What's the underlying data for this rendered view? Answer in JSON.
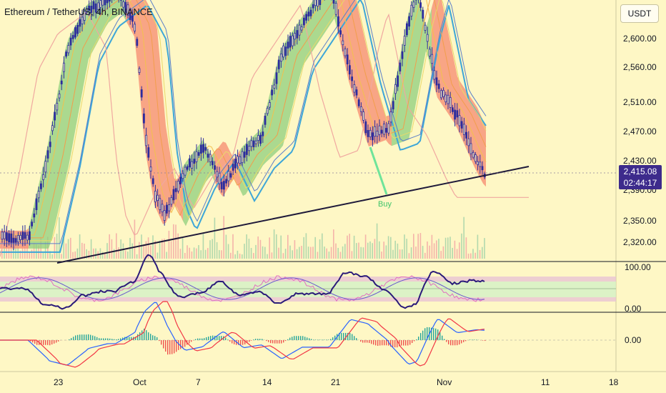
{
  "header": {
    "symbol_title": "Ethereum / TetherUS, 4h, BINANCE",
    "currency": "USDT"
  },
  "price_badge": {
    "price": "2,415.08",
    "countdown": "02:44:17"
  },
  "annotations": {
    "buy_label": "Buy"
  },
  "colors": {
    "background": "#fef7c5",
    "bull_candle": "#2c2c9e",
    "bear_candle": "#2c2c9e",
    "cloud_green": "#7cc47a",
    "cloud_red": "#f27b6b",
    "baseline_blue": "#3da6d8",
    "trendline": "#1f1a3a",
    "buy_arrow": "#6fe49a",
    "volume": "#f2a3a3",
    "badge": "#3d2b8c"
  },
  "chart_data": [
    {
      "type": "candlestick",
      "title": "",
      "y_axis_ticks": [
        "2,600.00",
        "2,560.00",
        "2,510.00",
        "2,470.00",
        "2,430.00",
        "2,390.00",
        "2,350.00",
        "2,320.00"
      ],
      "x_axis_ticks": [
        "23",
        "Oct",
        "7",
        "14",
        "21",
        "Nov",
        "11",
        "18"
      ],
      "last_price": 2415.08,
      "trendline": {
        "from": {
          "x": "23",
          "y": 2315
        },
        "to": {
          "x": "Nov 7",
          "y": 2422
        }
      },
      "price_path": [
        {
          "x": "Sep 20",
          "y": 2330
        },
        {
          "x": "Sep 22",
          "y": 2445
        },
        {
          "x": "Sep 24",
          "y": 2590
        },
        {
          "x": "Sep 26",
          "y": 2640
        },
        {
          "x": "Sep 29",
          "y": 2670
        },
        {
          "x": "Oct 1",
          "y": 2620
        },
        {
          "x": "Oct 2",
          "y": 2470
        },
        {
          "x": "Oct 3",
          "y": 2390
        },
        {
          "x": "Oct 4",
          "y": 2360
        },
        {
          "x": "Oct 6",
          "y": 2420
        },
        {
          "x": "Oct 8",
          "y": 2455
        },
        {
          "x": "Oct 10",
          "y": 2400
        },
        {
          "x": "Oct 12",
          "y": 2445
        },
        {
          "x": "Oct 14",
          "y": 2470
        },
        {
          "x": "Oct 16",
          "y": 2580
        },
        {
          "x": "Oct 19",
          "y": 2640
        },
        {
          "x": "Oct 21",
          "y": 2680
        },
        {
          "x": "Oct 23",
          "y": 2560
        },
        {
          "x": "Oct 25",
          "y": 2470
        },
        {
          "x": "Oct 27",
          "y": 2480
        },
        {
          "x": "Oct 29",
          "y": 2620
        },
        {
          "x": "Oct 30",
          "y": 2670
        },
        {
          "x": "Nov 1",
          "y": 2540
        },
        {
          "x": "Nov 3",
          "y": 2500
        },
        {
          "x": "Nov 5",
          "y": 2440
        },
        {
          "x": "Nov 6",
          "y": 2415
        }
      ],
      "buy_signal": {
        "x": "Oct 25",
        "y": 2390
      }
    },
    {
      "type": "line",
      "panel": "stochastic RSI",
      "y_axis_ticks": [
        "100.00",
        "0.00"
      ]
    },
    {
      "type": "line",
      "panel": "MACD",
      "y_axis_ticks": [
        "0.00"
      ]
    }
  ]
}
